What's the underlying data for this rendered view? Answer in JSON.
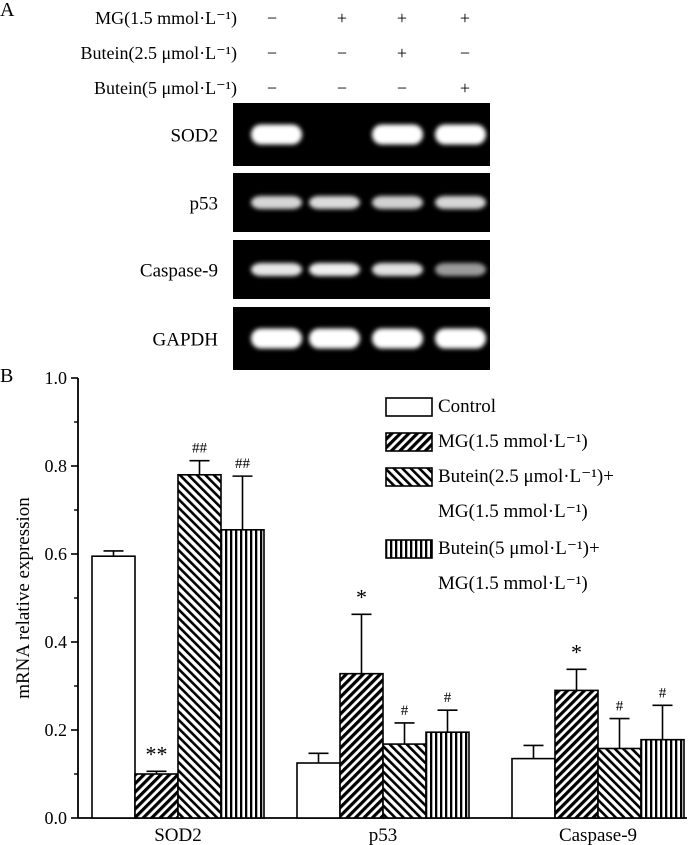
{
  "panel_a": {
    "panel_label": "A",
    "conditions": [
      {
        "label": "MG(1.5 mmol·L⁻¹)",
        "signs": [
          "−",
          "+",
          "+",
          "+"
        ]
      },
      {
        "label": "Butein(2.5 μmol·L⁻¹)",
        "signs": [
          "−",
          "−",
          "+",
          "−"
        ]
      },
      {
        "label": "Butein(5 μmol·L⁻¹)",
        "signs": [
          "−",
          "−",
          "−",
          "+"
        ]
      }
    ],
    "gel_rows": [
      {
        "label": "SOD2",
        "intensity": [
          1.0,
          0.0,
          1.0,
          1.0
        ]
      },
      {
        "label": "p53",
        "intensity": [
          0.75,
          0.78,
          0.72,
          0.75
        ]
      },
      {
        "label": "Caspase-9",
        "intensity": [
          0.85,
          0.9,
          0.82,
          0.45
        ]
      },
      {
        "label": "GAPDH",
        "intensity": [
          1.0,
          1.0,
          1.0,
          1.0
        ]
      }
    ]
  },
  "panel_b": {
    "panel_label": "B",
    "legend": [
      [
        "Control"
      ],
      [
        "MG(1.5 mmol·L⁻¹)"
      ],
      [
        "Butein(2.5 μmol·L⁻¹)+",
        "MG(1.5 mmol·L⁻¹)"
      ],
      [
        "Butein(5 μmol·L⁻¹)+",
        "MG(1.5 mmol·L⁻¹)"
      ]
    ]
  },
  "chart_data": {
    "type": "bar",
    "ylabel": "mRNA relative expression",
    "ylim": [
      0,
      1.0
    ],
    "yticks": [
      "0.0",
      "0.2",
      "0.4",
      "0.6",
      "0.8",
      "1.0"
    ],
    "categories": [
      "SOD2",
      "p53",
      "Caspase-9"
    ],
    "series": [
      {
        "name": "Control",
        "pattern": "none",
        "values": [
          0.595,
          0.125,
          0.135
        ],
        "errors": [
          0.012,
          0.022,
          0.03
        ],
        "annotations": [
          "",
          "",
          ""
        ]
      },
      {
        "name": "MG(1.5 mmol·L⁻¹)",
        "pattern": "diag-right",
        "values": [
          0.1,
          0.328,
          0.29
        ],
        "errors": [
          0.006,
          0.135,
          0.048
        ],
        "annotations": [
          "**",
          "*",
          "*"
        ]
      },
      {
        "name": "Butein(2.5 μmol·L⁻¹)+MG(1.5 mmol·L⁻¹)",
        "pattern": "diag-left",
        "values": [
          0.78,
          0.168,
          0.158
        ],
        "errors": [
          0.032,
          0.048,
          0.068
        ],
        "annotations": [
          "##",
          "#",
          "#"
        ]
      },
      {
        "name": "Butein(5 μmol·L⁻¹)+MG(1.5 mmol·L⁻¹)",
        "pattern": "vertical",
        "values": [
          0.655,
          0.195,
          0.178
        ],
        "errors": [
          0.122,
          0.05,
          0.078
        ],
        "annotations": [
          "##",
          "#",
          "#"
        ]
      }
    ]
  }
}
